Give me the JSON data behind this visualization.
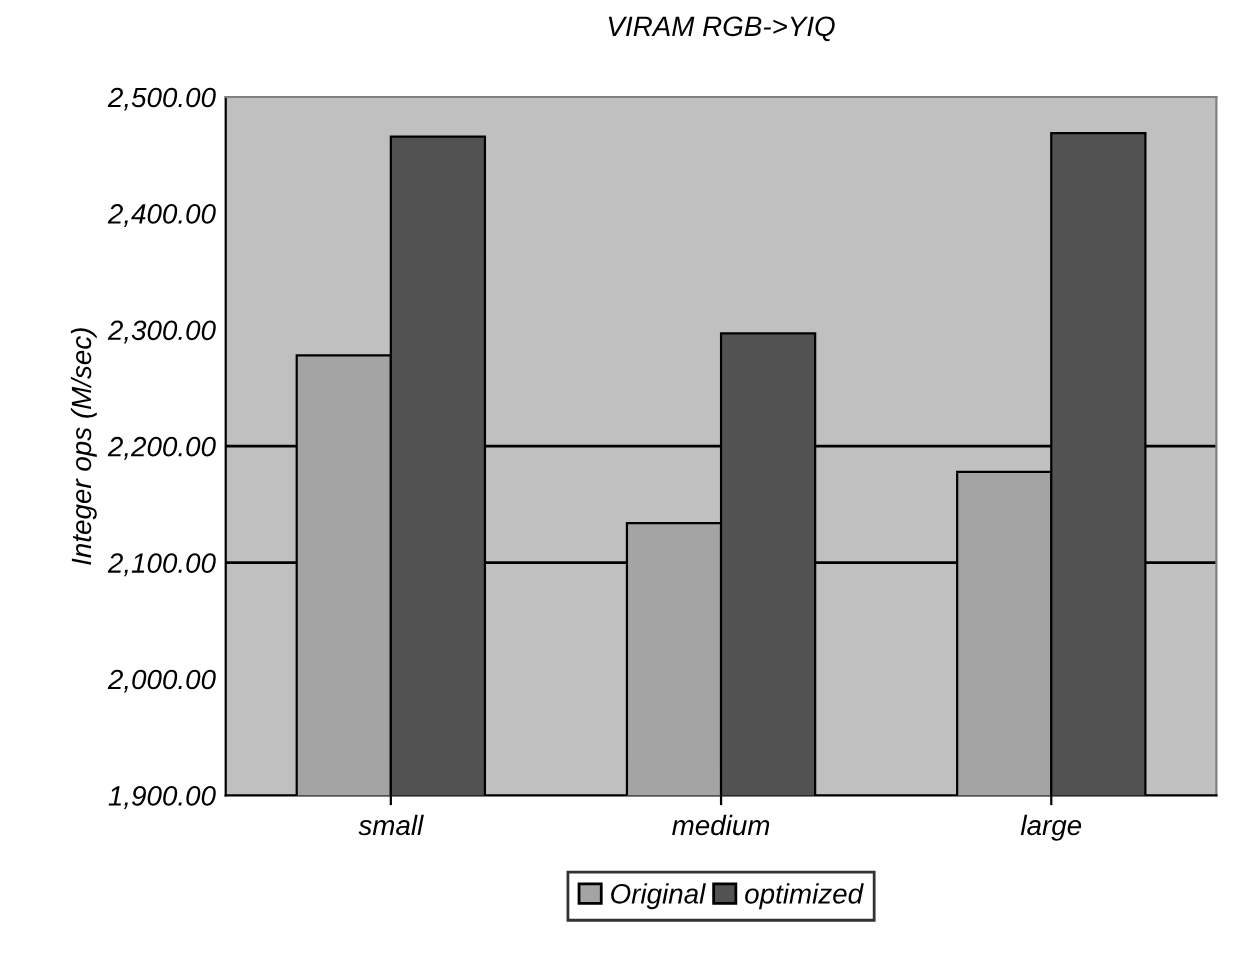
{
  "chart_data": {
    "type": "bar",
    "title": "VIRAM RGB->YIQ",
    "ylabel": "Integer ops (M/sec)",
    "categories": [
      "small",
      "medium",
      "large"
    ],
    "series": [
      {
        "name": "Original",
        "color": "#a4a4a4",
        "values": [
          2278,
          2134,
          2178
        ]
      },
      {
        "name": "optimized",
        "color": "#525252",
        "values": [
          2466,
          2297,
          2469
        ]
      }
    ],
    "ylim": [
      1900,
      2500
    ],
    "yticks": [
      {
        "value": 1900,
        "label": "1,900.00"
      },
      {
        "value": 2000,
        "label": "2,000.00"
      },
      {
        "value": 2100,
        "label": "2,100.00"
      },
      {
        "value": 2200,
        "label": "2,200.00"
      },
      {
        "value": 2300,
        "label": "2,300.00"
      },
      {
        "value": 2400,
        "label": "2,400.00"
      },
      {
        "value": 2500,
        "label": "2,500.00"
      }
    ],
    "ref_lines": [
      {
        "axis": "y",
        "value": 2100,
        "color": "#000000"
      },
      {
        "axis": "y",
        "value": 2200,
        "color": "#000000"
      }
    ],
    "legend": "bottom"
  }
}
